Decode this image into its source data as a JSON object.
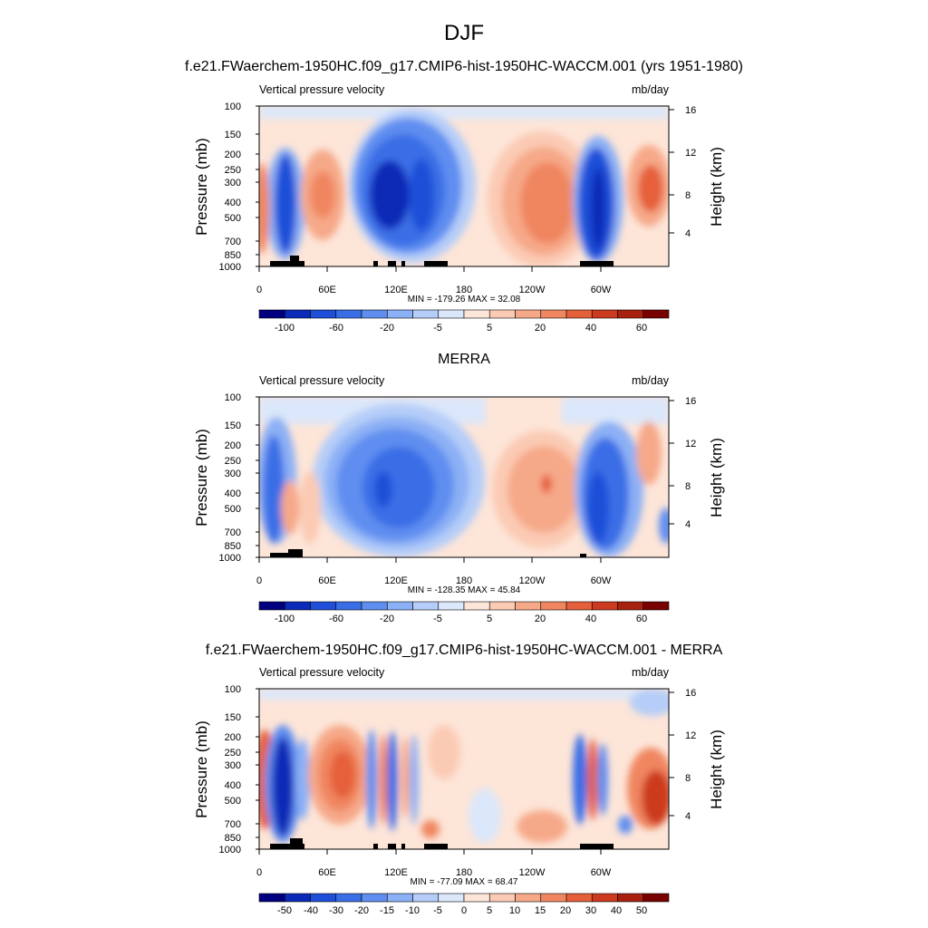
{
  "figure": {
    "title": "DJF"
  },
  "chart_data": [
    {
      "type": "heatmap",
      "title": "f.e21.FWaerchem-1950HC.f09_g17.CMIP6-hist-1950HC-WACCM.001 (yrs 1951-1980)",
      "left_label": "Vertical pressure velocity",
      "right_label": "mb/day",
      "ylabel": "Pressure (mb)",
      "ylabel_right": "Height (km)",
      "x_ticks": [
        "0",
        "60E",
        "120E",
        "180",
        "120W",
        "60W"
      ],
      "y_ticks": [
        "100",
        "150",
        "200",
        "250",
        "300",
        "400",
        "500",
        "700",
        "850",
        "1000"
      ],
      "y_ticks_right": [
        "16",
        "12",
        "8",
        "4"
      ],
      "stats": "MIN = -179.26  MAX =  32.08",
      "min": -179.26,
      "max": 32.08,
      "colorbar_labels": [
        "-100",
        "-60",
        "-20",
        "-5",
        "5",
        "20",
        "40",
        "60"
      ]
    },
    {
      "type": "heatmap",
      "title": "MERRA",
      "left_label": "Vertical pressure velocity",
      "right_label": "mb/day",
      "ylabel": "Pressure (mb)",
      "ylabel_right": "Height (km)",
      "x_ticks": [
        "0",
        "60E",
        "120E",
        "180",
        "120W",
        "60W"
      ],
      "y_ticks": [
        "100",
        "150",
        "200",
        "250",
        "300",
        "400",
        "500",
        "700",
        "850",
        "1000"
      ],
      "y_ticks_right": [
        "16",
        "12",
        "8",
        "4"
      ],
      "stats": "MIN = -128.35  MAX =  45.84",
      "min": -128.35,
      "max": 45.84,
      "colorbar_labels": [
        "-100",
        "-60",
        "-20",
        "-5",
        "5",
        "20",
        "40",
        "60"
      ]
    },
    {
      "type": "heatmap",
      "title": "f.e21.FWaerchem-1950HC.f09_g17.CMIP6-hist-1950HC-WACCM.001 - MERRA",
      "left_label": "Vertical pressure velocity",
      "right_label": "mb/day",
      "ylabel": "Pressure (mb)",
      "ylabel_right": "Height (km)",
      "x_ticks": [
        "0",
        "60E",
        "120E",
        "180",
        "120W",
        "60W"
      ],
      "y_ticks": [
        "100",
        "150",
        "200",
        "250",
        "300",
        "400",
        "500",
        "700",
        "850",
        "1000"
      ],
      "y_ticks_right": [
        "16",
        "12",
        "8",
        "4"
      ],
      "stats": "MIN = -77.09  MAX =  68.47",
      "min": -77.09,
      "max": 68.47,
      "colorbar_labels": [
        "-50",
        "-40",
        "-30",
        "-20",
        "-15",
        "-10",
        "-5",
        "0",
        "5",
        "10",
        "15",
        "20",
        "30",
        "40",
        "50"
      ]
    }
  ],
  "colors": {
    "colorbar_16": [
      "#00007f",
      "#0a2ab7",
      "#1f4fd8",
      "#3a6ee6",
      "#5f8ef0",
      "#8cb0f5",
      "#b5cdf8",
      "#dbe7fa",
      "#fde5d8",
      "#fbcab4",
      "#f6a989",
      "#f08660",
      "#e5603a",
      "#cc3a1f",
      "#a8200e",
      "#780000"
    ]
  }
}
